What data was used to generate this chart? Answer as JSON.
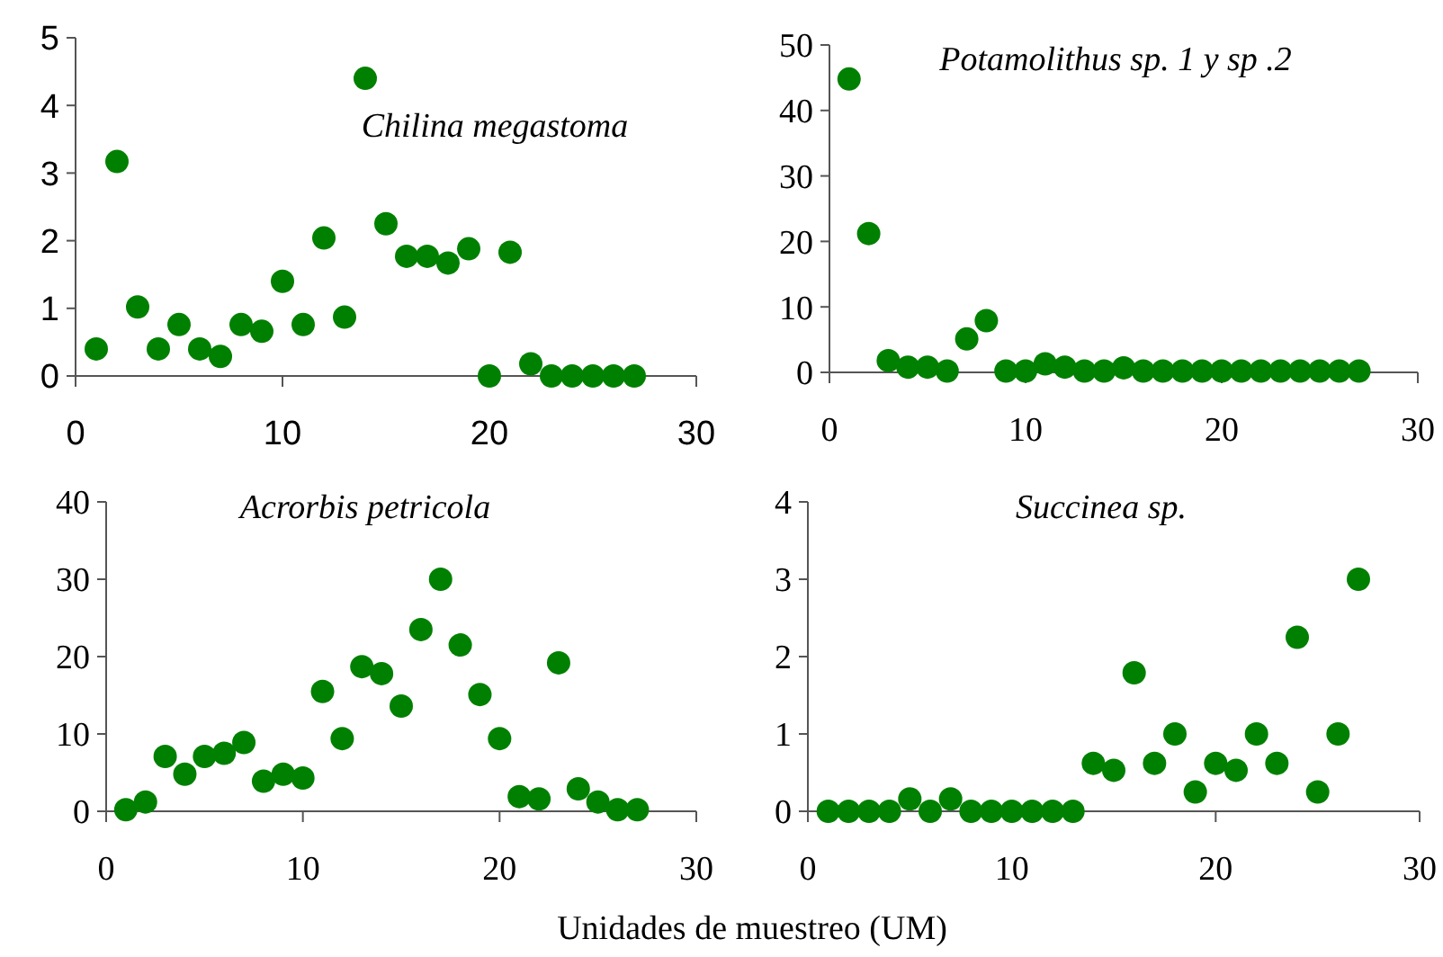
{
  "chart_data": [
    {
      "type": "scatter",
      "title": "Chilina megastoma",
      "x": [
        1,
        2,
        3,
        4,
        5,
        6,
        7,
        8,
        9,
        10,
        11,
        12,
        13,
        14,
        15,
        16,
        17,
        18,
        19,
        20,
        21,
        22,
        23,
        24,
        25,
        26,
        27
      ],
      "series": [
        {
          "color": "#008000",
          "values": [
            0.4,
            3.17,
            1.02,
            0.4,
            0.76,
            0.4,
            0.29,
            0.76,
            0.66,
            1.4,
            0.76,
            2.04,
            0.87,
            4.4,
            2.25,
            1.77,
            1.77,
            1.67,
            1.88,
            0,
            1.83,
            0.18,
            0,
            0,
            0,
            0,
            0
          ]
        }
      ],
      "xlim": [
        0,
        30
      ],
      "xticks": [
        0,
        10,
        20,
        30
      ],
      "ylim": [
        0,
        5
      ],
      "yticks": [
        0,
        1,
        2,
        3,
        4,
        5
      ],
      "marker": "circle"
    },
    {
      "type": "scatter",
      "title": "Potamolithus sp. 1 y sp .2",
      "x": [
        1,
        2,
        3,
        4,
        5,
        6,
        7,
        8,
        9,
        10,
        11,
        12,
        13,
        14,
        15,
        16,
        17,
        18,
        19,
        20,
        21,
        22,
        23,
        24,
        25,
        26,
        27
      ],
      "series": [
        {
          "color": "#008000",
          "values": [
            44.8,
            21.2,
            1.8,
            0.8,
            0.8,
            0.2,
            5.1,
            7.9,
            0.2,
            0.2,
            1.3,
            0.8,
            0.2,
            0.2,
            0.7,
            0.2,
            0.2,
            0.2,
            0.2,
            0.2,
            0.2,
            0.2,
            0.2,
            0.2,
            0.2,
            0.2,
            0.2
          ]
        }
      ],
      "xlim": [
        0,
        30
      ],
      "xticks": [
        0,
        10,
        20,
        30
      ],
      "ylim": [
        0,
        50
      ],
      "yticks": [
        0,
        10,
        20,
        30,
        40,
        50
      ],
      "marker": "circle"
    },
    {
      "type": "scatter",
      "title": "Acrorbis petricola",
      "x": [
        1,
        2,
        3,
        4,
        5,
        6,
        7,
        8,
        9,
        10,
        11,
        12,
        13,
        14,
        15,
        16,
        17,
        18,
        19,
        20,
        21,
        22,
        23,
        24,
        25,
        26,
        27
      ],
      "series": [
        {
          "color": "#008000",
          "values": [
            0.2,
            1.2,
            7.1,
            4.8,
            7.1,
            7.5,
            8.9,
            3.9,
            4.8,
            4.3,
            15.5,
            9.4,
            18.7,
            17.8,
            13.6,
            23.5,
            30,
            21.5,
            15.1,
            9.4,
            1.9,
            1.6,
            19.2,
            2.9,
            1.2,
            0.2,
            0.2
          ]
        }
      ],
      "xlim": [
        0,
        30
      ],
      "xticks": [
        0,
        10,
        20,
        30
      ],
      "ylim": [
        0,
        40
      ],
      "yticks": [
        0,
        10,
        20,
        30,
        40
      ],
      "marker": "circle"
    },
    {
      "type": "scatter",
      "title": "Succinea sp.",
      "xlabel": "Unidades de muestreo (UM)",
      "x": [
        1,
        2,
        3,
        4,
        5,
        6,
        7,
        8,
        9,
        10,
        11,
        12,
        13,
        14,
        15,
        16,
        17,
        18,
        19,
        20,
        21,
        22,
        23,
        24,
        25,
        26,
        27
      ],
      "series": [
        {
          "color": "#008000",
          "values": [
            0,
            0,
            0,
            0,
            0.16,
            0,
            0.16,
            0,
            0,
            0,
            0,
            0,
            0,
            0.62,
            0.53,
            1.79,
            0.62,
            1,
            0.25,
            0.62,
            0.53,
            1,
            0.62,
            2.25,
            0.25,
            1,
            3
          ]
        }
      ],
      "xlim": [
        0,
        30
      ],
      "xticks": [
        0,
        10,
        20,
        30
      ],
      "ylim": [
        0,
        4
      ],
      "yticks": [
        0,
        1,
        2,
        3,
        4
      ],
      "marker": "circle"
    }
  ]
}
